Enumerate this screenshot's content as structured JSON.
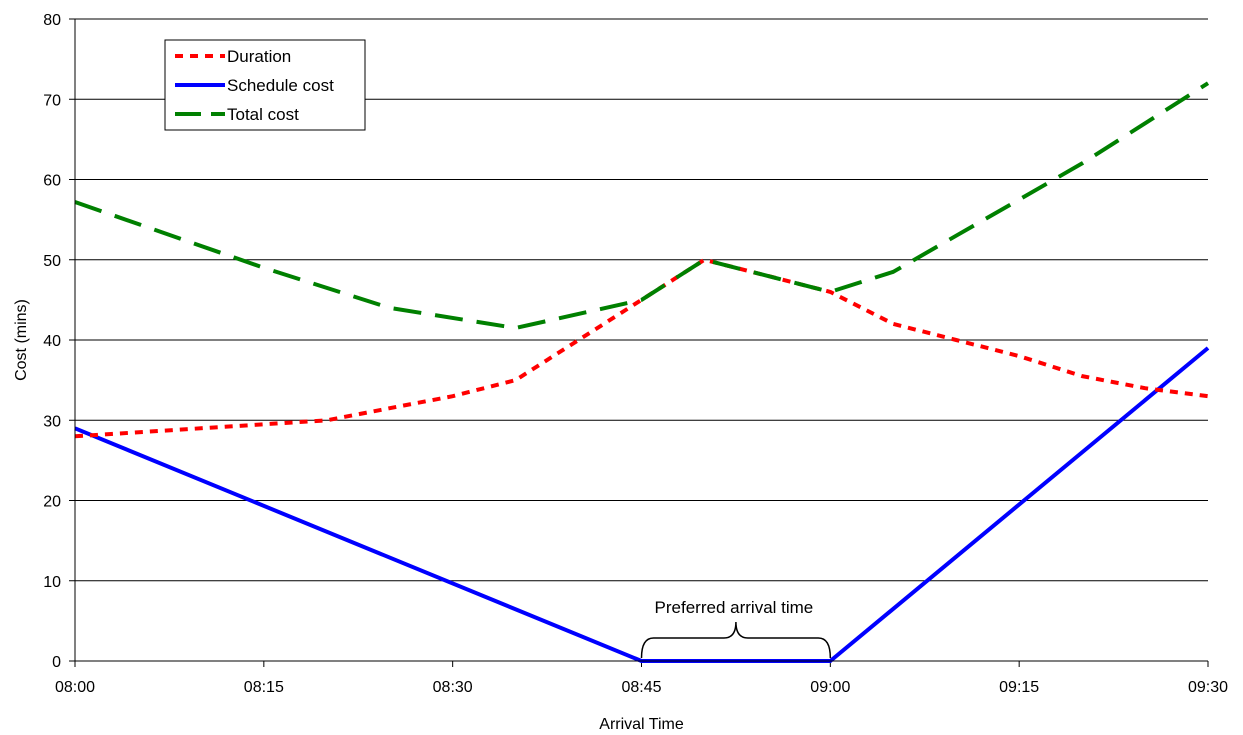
{
  "chart_data": {
    "type": "line",
    "xlabel": "Arrival Time",
    "ylabel": "Cost (mins)",
    "x_ticks": [
      "08:00",
      "08:15",
      "08:30",
      "08:45",
      "09:00",
      "09:15",
      "09:30"
    ],
    "xlim_minutes": [
      480,
      570
    ],
    "ylim": [
      0,
      80
    ],
    "y_ticks": [
      0,
      10,
      20,
      30,
      40,
      50,
      60,
      70,
      80
    ],
    "grid": "horizontal",
    "legend_position": "top-left",
    "series": [
      {
        "name": "Duration",
        "style": "dotted",
        "color": "#ff0000",
        "points": [
          [
            "08:00",
            28
          ],
          [
            "08:10",
            29
          ],
          [
            "08:15",
            29.5
          ],
          [
            "08:20",
            30
          ],
          [
            "08:25",
            31.5
          ],
          [
            "08:30",
            33
          ],
          [
            "08:35",
            35
          ],
          [
            "08:40",
            40
          ],
          [
            "08:45",
            45
          ],
          [
            "08:50",
            50
          ],
          [
            "08:55",
            48
          ],
          [
            "09:00",
            46
          ],
          [
            "09:05",
            42
          ],
          [
            "09:10",
            40
          ],
          [
            "09:15",
            38
          ],
          [
            "09:20",
            35.5
          ],
          [
            "09:25",
            34
          ],
          [
            "09:30",
            33
          ]
        ]
      },
      {
        "name": "Schedule cost",
        "style": "solid",
        "color": "#0000ff",
        "points": [
          [
            "08:00",
            29
          ],
          [
            "08:45",
            0
          ],
          [
            "09:00",
            0
          ],
          [
            "09:30",
            39
          ]
        ]
      },
      {
        "name": "Total cost",
        "style": "dashed",
        "color": "#008000",
        "points": [
          [
            "08:00",
            57.2
          ],
          [
            "08:15",
            49
          ],
          [
            "08:25",
            44
          ],
          [
            "08:35",
            41.5
          ],
          [
            "08:45",
            45
          ],
          [
            "08:50",
            50
          ],
          [
            "09:00",
            46
          ],
          [
            "09:05",
            48.5
          ],
          [
            "09:10",
            53
          ],
          [
            "09:15",
            57.5
          ],
          [
            "09:20",
            62
          ],
          [
            "09:25",
            67
          ],
          [
            "09:30",
            72
          ]
        ]
      }
    ],
    "annotations": [
      {
        "text": "Preferred arrival time",
        "x_start": "08:45",
        "x_end": "09:00"
      }
    ]
  }
}
